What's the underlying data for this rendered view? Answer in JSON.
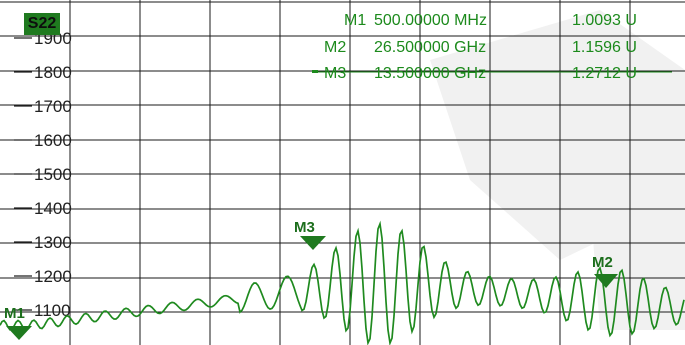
{
  "trace_label": "S22",
  "colors": {
    "trace": "#1f8a1f",
    "grid": "#1a1a1a",
    "marker_text": "#1c8a1c",
    "badge_bg": "#1f7a1f"
  },
  "markers": [
    {
      "name": "M1",
      "freq": "500.00000 MHz",
      "value": "1.0093 U",
      "active": false
    },
    {
      "name": "M2",
      "freq": "26.500000 GHz",
      "value": "1.1596 U",
      "active": false
    },
    {
      "name": "M3",
      "freq": "13.500000 GHz",
      "value": "1.2712 U",
      "active": true
    }
  ],
  "chart_data": {
    "type": "line",
    "title": "",
    "xlabel": "",
    "ylabel": "",
    "ylim": [
      1000,
      1950
    ],
    "yticks": [
      1100,
      1200,
      1300,
      1400,
      1500,
      1600,
      1700,
      1800,
      1900
    ],
    "ytick_labels": [
      "1100",
      "1200",
      "1300",
      "1400",
      "1500",
      "1600",
      "1700",
      "1800",
      "1900"
    ],
    "grid": true,
    "trace": "S22"
  }
}
